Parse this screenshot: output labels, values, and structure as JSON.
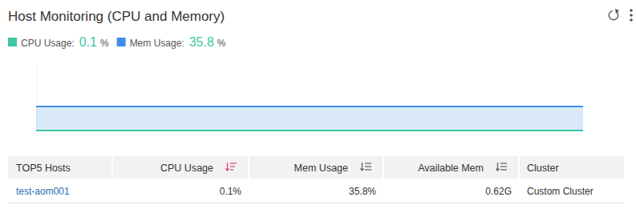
{
  "header": {
    "title": "Host Monitoring (CPU and Memory)",
    "legend_values": [
      0.1,
      35.8
    ],
    "legend_unit": "%"
  },
  "chart_data": {
    "type": "area",
    "categories": [
      null,
      null,
      null,
      null,
      null,
      null,
      null,
      null,
      null,
      null,
      null,
      null
    ],
    "series": [
      {
        "name": "CPU Usage:",
        "color": "#3cc8a0",
        "type": "line",
        "values": [
          0.1,
          0.1,
          0.1,
          0.1,
          0.1,
          0.1,
          0.1,
          0.1,
          0.1,
          0.1,
          0.1,
          0.1
        ]
      },
      {
        "name": "Mem Usage:",
        "color": "#3f8fe8",
        "type": "area",
        "values": [
          35.8,
          35.8,
          35.8,
          35.8,
          35.8,
          35.8,
          35.8,
          35.8,
          35.8,
          35.8,
          35.8,
          35.8
        ]
      }
    ],
    "ylim": [
      0,
      100
    ],
    "tick_labels": false,
    "grid": false
  },
  "table": {
    "columns": [
      "TOP5 Hosts",
      "CPU Usage",
      "Mem Usage",
      "Available Mem",
      "Cluster"
    ],
    "rows": [
      [
        "test-aom001",
        "0.1%",
        "35.8%",
        "0.62G",
        "Custom Cluster"
      ]
    ],
    "sort_column": 1
  }
}
